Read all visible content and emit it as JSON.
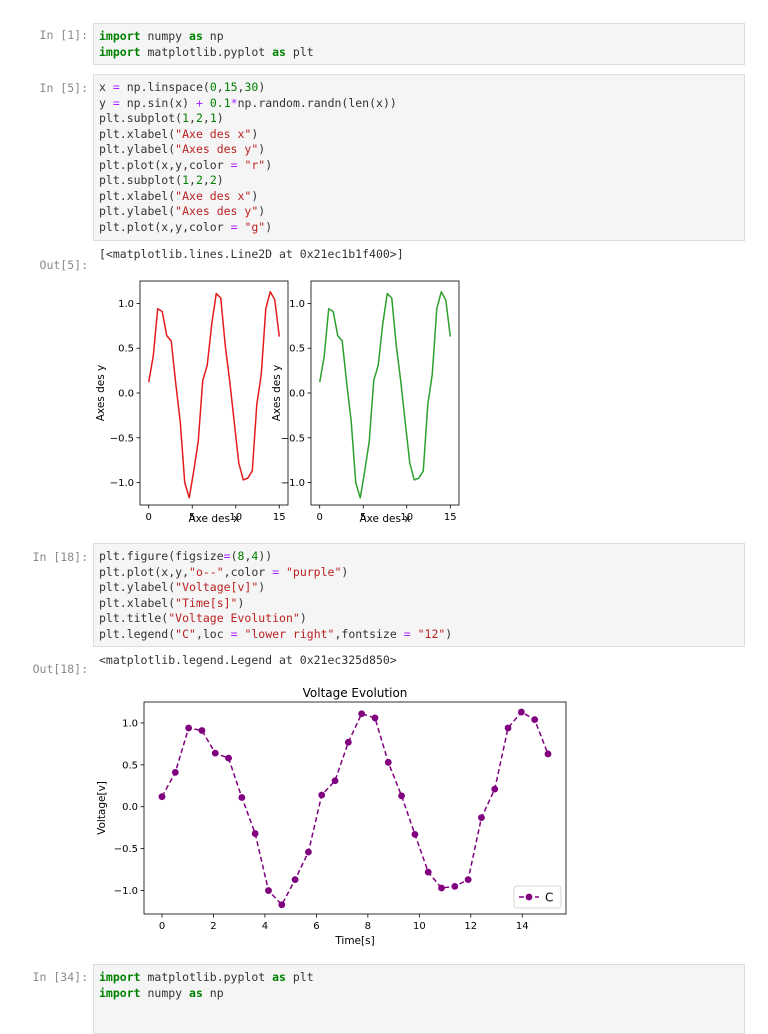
{
  "cells": [
    {
      "prompt": "In [1]:",
      "code": [
        [
          [
            "import",
            "kw"
          ],
          [
            " numpy ",
            ""
          ],
          [
            "as",
            "kw"
          ],
          [
            " np",
            ""
          ]
        ],
        [
          [
            "import",
            "kw"
          ],
          [
            " matplotlib.pyplot ",
            ""
          ],
          [
            "as",
            "kw"
          ],
          [
            " plt",
            ""
          ]
        ]
      ]
    },
    {
      "prompt": "In [5]:",
      "code": [
        [
          [
            "x ",
            ""
          ],
          [
            "=",
            "op"
          ],
          [
            " np.linspace(",
            ""
          ],
          [
            "0",
            "num"
          ],
          [
            ",",
            ""
          ],
          [
            "15",
            "num"
          ],
          [
            ",",
            ""
          ],
          [
            "30",
            "num"
          ],
          [
            ")",
            ""
          ]
        ],
        [
          [
            "y ",
            ""
          ],
          [
            "=",
            "op"
          ],
          [
            " np.sin(x) ",
            ""
          ],
          [
            "+",
            "op"
          ],
          [
            " ",
            ""
          ],
          [
            "0.1",
            "num"
          ],
          [
            "*",
            "op"
          ],
          [
            "np.random.randn(len(x))",
            ""
          ]
        ],
        [
          [
            "plt.subplot(",
            ""
          ],
          [
            "1",
            "num"
          ],
          [
            ",",
            ""
          ],
          [
            "2",
            "num"
          ],
          [
            ",",
            ""
          ],
          [
            "1",
            "num"
          ],
          [
            ")",
            ""
          ]
        ],
        [
          [
            "plt.xlabel(",
            ""
          ],
          [
            "\"Axe des x\"",
            "str"
          ],
          [
            ")",
            ""
          ]
        ],
        [
          [
            "plt.ylabel(",
            ""
          ],
          [
            "\"Axes des y\"",
            "str"
          ],
          [
            ")",
            ""
          ]
        ],
        [
          [
            "plt.plot(x,y,color ",
            ""
          ],
          [
            "=",
            "op"
          ],
          [
            " ",
            ""
          ],
          [
            "\"r\"",
            "str"
          ],
          [
            ")",
            ""
          ]
        ],
        [
          [
            "plt.subplot(",
            ""
          ],
          [
            "1",
            "num"
          ],
          [
            ",",
            ""
          ],
          [
            "2",
            "num"
          ],
          [
            ",",
            ""
          ],
          [
            "2",
            "num"
          ],
          [
            ")",
            ""
          ]
        ],
        [
          [
            "plt.xlabel(",
            ""
          ],
          [
            "\"Axe des x\"",
            "str"
          ],
          [
            ")",
            ""
          ]
        ],
        [
          [
            "plt.ylabel(",
            ""
          ],
          [
            "\"Axes des y\"",
            "str"
          ],
          [
            ")",
            ""
          ]
        ],
        [
          [
            "plt.plot(x,y,color ",
            ""
          ],
          [
            "=",
            "op"
          ],
          [
            " ",
            ""
          ],
          [
            "\"g\"",
            "str"
          ],
          [
            ")",
            ""
          ]
        ]
      ],
      "out_prompt": "Out[5]:",
      "output": "[<matplotlib.lines.Line2D at 0x21ec1b1f400>]"
    },
    {
      "prompt": "In [18]:",
      "code": [
        [
          [
            "plt.figure(figsize",
            ""
          ],
          [
            "=",
            "op"
          ],
          [
            "(",
            ""
          ],
          [
            "8",
            "num"
          ],
          [
            ",",
            ""
          ],
          [
            "4",
            "num"
          ],
          [
            "))",
            ""
          ]
        ],
        [
          [
            "plt.plot(x,y,",
            ""
          ],
          [
            "\"o--\"",
            "str"
          ],
          [
            ",color ",
            ""
          ],
          [
            "=",
            "op"
          ],
          [
            " ",
            ""
          ],
          [
            "\"purple\"",
            "str"
          ],
          [
            ")",
            ""
          ]
        ],
        [
          [
            "plt.ylabel(",
            ""
          ],
          [
            "\"Voltage[v]\"",
            "str"
          ],
          [
            ")",
            ""
          ]
        ],
        [
          [
            "plt.xlabel(",
            ""
          ],
          [
            "\"Time[s]\"",
            "str"
          ],
          [
            ")",
            ""
          ]
        ],
        [
          [
            "plt.title(",
            ""
          ],
          [
            "\"Voltage Evolution\"",
            "str"
          ],
          [
            ")",
            ""
          ]
        ],
        [
          [
            "plt.legend(",
            ""
          ],
          [
            "\"C\"",
            "str"
          ],
          [
            ",loc ",
            ""
          ],
          [
            "=",
            "op"
          ],
          [
            " ",
            ""
          ],
          [
            "\"lower right\"",
            "str"
          ],
          [
            ",fontsize ",
            ""
          ],
          [
            "=",
            "op"
          ],
          [
            " ",
            ""
          ],
          [
            "\"12\"",
            "str"
          ],
          [
            ")",
            ""
          ]
        ]
      ],
      "out_prompt": "Out[18]:",
      "output": "<matplotlib.legend.Legend at 0x21ec325d850>"
    },
    {
      "prompt": "In [34]:",
      "code": [
        [
          [
            "import",
            "kw"
          ],
          [
            " matplotlib.pyplot ",
            ""
          ],
          [
            "as",
            "kw"
          ],
          [
            " plt",
            ""
          ]
        ],
        [
          [
            "import",
            "kw"
          ],
          [
            " numpy ",
            ""
          ],
          [
            "as",
            "kw"
          ],
          [
            " np",
            ""
          ]
        ]
      ]
    }
  ],
  "colors": {
    "red_line": "#e41a1c",
    "green_line": "#2ca02c",
    "purple_line": "#800080"
  },
  "chart_data": [
    {
      "type": "line",
      "title": "",
      "xlabel": "Axe des x",
      "ylabel": "Axes des y",
      "xlim": [
        -1,
        16
      ],
      "ylim": [
        -1.25,
        1.25
      ],
      "xticks": [
        0,
        5,
        10,
        15
      ],
      "yticks": [
        -1.0,
        -0.5,
        0.0,
        0.5,
        1.0
      ],
      "xtick_labels": [
        "0",
        "5",
        "10",
        "15"
      ],
      "ytick_labels": [
        "−1.0",
        "−0.5",
        "0.0",
        "0.5",
        "1.0"
      ],
      "series": [
        {
          "color": "#e41a1c",
          "style": "solid"
        }
      ]
    },
    {
      "type": "line",
      "title": "",
      "xlabel": "Axe des x",
      "ylabel": "Axes des y",
      "xlim": [
        -1,
        16
      ],
      "ylim": [
        -1.25,
        1.25
      ],
      "xticks": [
        0,
        5,
        10,
        15
      ],
      "yticks": [
        -1.0,
        -0.5,
        0.0,
        0.5,
        1.0
      ],
      "xtick_labels": [
        "0",
        "5",
        "10",
        "15"
      ],
      "ytick_labels": [
        "−1.0",
        "−0.5",
        "0.0",
        "0.5",
        "1.0"
      ],
      "series": [
        {
          "color": "#2ca02c",
          "style": "solid"
        }
      ]
    },
    {
      "type": "line",
      "title": "Voltage Evolution",
      "xlabel": "Time[s]",
      "ylabel": "Voltage[v]",
      "xlim": [
        -0.7,
        15.7
      ],
      "ylim": [
        -1.28,
        1.25
      ],
      "xticks": [
        0,
        2,
        4,
        6,
        8,
        10,
        12,
        14
      ],
      "yticks": [
        -1.0,
        -0.5,
        0.0,
        0.5,
        1.0
      ],
      "xtick_labels": [
        "0",
        "2",
        "4",
        "6",
        "8",
        "10",
        "12",
        "14"
      ],
      "ytick_labels": [
        "−1.0",
        "−0.5",
        "0.0",
        "0.5",
        "1.0"
      ],
      "legend": {
        "label": "C",
        "loc": "lower right"
      },
      "series": [
        {
          "name": "C",
          "color": "#800080",
          "style": "o--",
          "markers": true
        }
      ]
    }
  ],
  "shared_series": {
    "x": [
      0,
      0.517,
      1.034,
      1.552,
      2.069,
      2.586,
      3.103,
      3.621,
      4.138,
      4.655,
      5.172,
      5.69,
      6.207,
      6.724,
      7.241,
      7.759,
      8.276,
      8.793,
      9.31,
      9.828,
      10.345,
      10.862,
      11.379,
      11.897,
      12.414,
      12.931,
      13.448,
      13.966,
      14.483,
      15
    ],
    "y": [
      0.12,
      0.41,
      0.94,
      0.91,
      0.64,
      0.58,
      0.11,
      -0.32,
      -1.0,
      -1.17,
      -0.87,
      -0.54,
      0.14,
      0.31,
      0.77,
      1.11,
      1.06,
      0.53,
      0.13,
      -0.33,
      -0.78,
      -0.97,
      -0.95,
      -0.87,
      -0.13,
      0.21,
      0.94,
      1.13,
      1.04,
      0.63
    ]
  }
}
